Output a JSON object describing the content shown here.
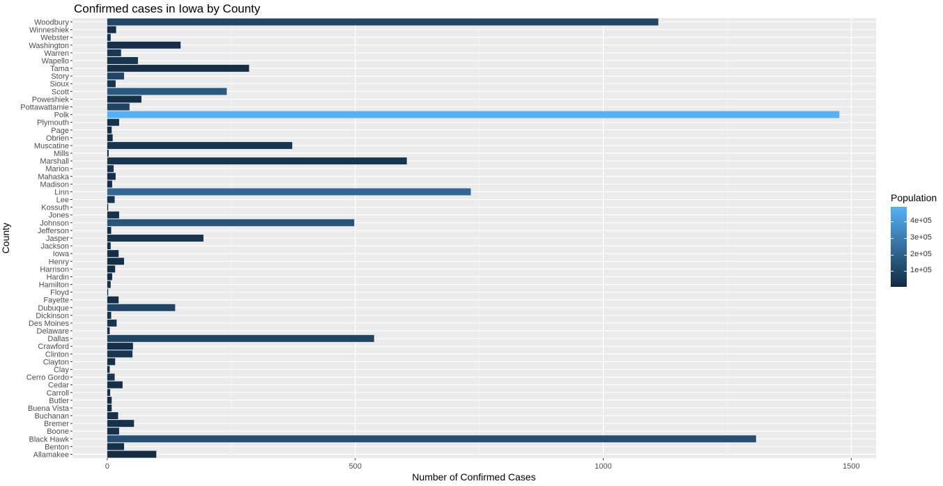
{
  "chart_data": {
    "type": "bar",
    "orientation": "horizontal",
    "title": "Confirmed cases in Iowa by County",
    "xlabel": "Number of Confirmed Cases",
    "ylabel": "County",
    "xlim": [
      -70,
      1550
    ],
    "x_ticks": [
      0,
      500,
      1000,
      1500
    ],
    "x_tick_labels": [
      "0",
      "500",
      "1000",
      "1500"
    ],
    "grid": true,
    "legend": {
      "title": "Population",
      "position": "right",
      "type": "colorbar",
      "low_color": "#132b43",
      "high_color": "#56b1f7",
      "range": [
        3700,
        490000
      ],
      "ticks": [
        100000,
        200000,
        300000,
        400000
      ],
      "tick_labels": [
        "1e+05",
        "2e+05",
        "3e+05",
        "4e+05"
      ]
    },
    "categories": [
      "Allamakee",
      "Benton",
      "Black Hawk",
      "Boone",
      "Bremer",
      "Buchanan",
      "Buena Vista",
      "Butler",
      "Carroll",
      "Cedar",
      "Cerro Gordo",
      "Clay",
      "Clayton",
      "Clinton",
      "Crawford",
      "Dallas",
      "Delaware",
      "Des Moines",
      "Dickinson",
      "Dubuque",
      "Fayette",
      "Floyd",
      "Hamilton",
      "Hardin",
      "Harrison",
      "Henry",
      "Iowa",
      "Jackson",
      "Jasper",
      "Jefferson",
      "Johnson",
      "Jones",
      "Kossuth",
      "Lee",
      "Linn",
      "Madison",
      "Mahaska",
      "Marion",
      "Marshall",
      "Mills",
      "Muscatine",
      "Obrien",
      "Page",
      "Plymouth",
      "Polk",
      "Pottawattamie",
      "Poweshiek",
      "Scott",
      "Sioux",
      "Story",
      "Tama",
      "Wapello",
      "Warren",
      "Washington",
      "Webster",
      "Winneshiek",
      "Woodbury"
    ],
    "values": [
      99,
      34,
      1308,
      24,
      54,
      22,
      9,
      9,
      6,
      31,
      15,
      5,
      16,
      51,
      52,
      538,
      5,
      19,
      8,
      137,
      23,
      2,
      7,
      10,
      16,
      34,
      23,
      7,
      194,
      8,
      498,
      24,
      2,
      15,
      733,
      10,
      17,
      13,
      604,
      3,
      373,
      11,
      9,
      24,
      1476,
      45,
      69,
      241,
      17,
      34,
      286,
      62,
      28,
      148,
      7,
      18,
      1111
    ],
    "population": [
      14000,
      25600,
      131000,
      26200,
      24900,
      21000,
      19600,
      14400,
      20000,
      18600,
      42500,
      16000,
      17500,
      46400,
      16800,
      93500,
      17000,
      38900,
      17200,
      97300,
      19600,
      15600,
      15000,
      16800,
      14000,
      19900,
      16200,
      19400,
      37200,
      18300,
      151000,
      20700,
      14800,
      33700,
      226000,
      16300,
      22100,
      33200,
      39400,
      15100,
      42700,
      13800,
      15100,
      25200,
      490000,
      93200,
      18500,
      173000,
      35900,
      98500,
      16900,
      35100,
      51500,
      22600,
      35900,
      19900,
      103000
    ]
  }
}
